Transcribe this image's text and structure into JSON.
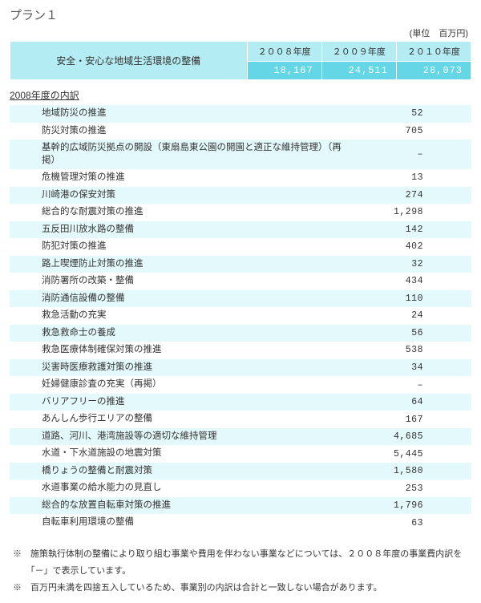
{
  "title": "プラン１",
  "unit": "(単位　百万円)",
  "header": {
    "desc": "安全・安心な地域生活環境の整備",
    "years": [
      "２００８年度",
      "２００９年度",
      "２０１０年度"
    ],
    "values": [
      "18,167",
      "24,511",
      "28,073"
    ]
  },
  "subhead": "2008年度の内訳",
  "rows": [
    {
      "label": "地域防災の推進",
      "val": "52"
    },
    {
      "label": "防災対策の推進",
      "val": "705"
    },
    {
      "label": "基幹的広域防災拠点の開設（東扇島東公園の開園と適正な維持管理）（再掲）",
      "val": "–"
    },
    {
      "label": "危機管理対策の推進",
      "val": "13"
    },
    {
      "label": "川崎港の保安対策",
      "val": "274"
    },
    {
      "label": "総合的な耐震対策の推進",
      "val": "1,298"
    },
    {
      "label": "五反田川放水路の整備",
      "val": "142"
    },
    {
      "label": "防犯対策の推進",
      "val": "402"
    },
    {
      "label": "路上喫煙防止対策の推進",
      "val": "32"
    },
    {
      "label": "消防署所の改築・整備",
      "val": "434"
    },
    {
      "label": "消防通信設備の整備",
      "val": "110"
    },
    {
      "label": "救急活動の充実",
      "val": "24"
    },
    {
      "label": "救急救命士の養成",
      "val": "56"
    },
    {
      "label": "救急医療体制確保対策の推進",
      "val": "538"
    },
    {
      "label": "災害時医療救護対策の推進",
      "val": "34"
    },
    {
      "label": "妊婦健康診査の充実（再掲）",
      "val": "–"
    },
    {
      "label": "バリアフリーの推進",
      "val": "64"
    },
    {
      "label": "あんしん歩行エリアの整備",
      "val": "167"
    },
    {
      "label": "道路、河川、港湾施設等の適切な維持管理",
      "val": "4,685"
    },
    {
      "label": "水道・下水道施設の地震対策",
      "val": "5,445"
    },
    {
      "label": "橋りょうの整備と耐震対策",
      "val": "1,580"
    },
    {
      "label": "水道事業の給水能力の見直し",
      "val": "253"
    },
    {
      "label": "総合的な放置自転車対策の推進",
      "val": "1,796"
    },
    {
      "label": "自転車利用環境の整備",
      "val": "63"
    }
  ],
  "notes": [
    "※　施策執行体制の整備により取り組む事業や費用を伴わない事業などについては、２００８年度の事業費内訳を「－」で表示しています。",
    "※　百万円未満を四捨五入しているため、事業別の内訳は合計と一致しない場合があります。"
  ]
}
